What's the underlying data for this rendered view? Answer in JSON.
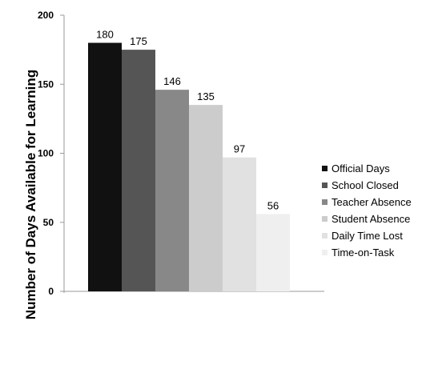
{
  "chart_data": {
    "type": "bar",
    "ylabel": "Number of Days Available for Learning",
    "ylim": [
      0,
      200
    ],
    "yticks": [
      0,
      50,
      100,
      150,
      200
    ],
    "categories": [
      "Official Days",
      "School Closed",
      "Teacher Absence",
      "Student Absence",
      "Daily Time Lost",
      "Time-on-Task"
    ],
    "values": [
      180,
      175,
      146,
      135,
      97,
      56
    ],
    "colors": [
      "#111111",
      "#555555",
      "#888888",
      "#cccccc",
      "#e1e1e1",
      "#efefef"
    ],
    "legend_position": "right",
    "grid": false
  }
}
